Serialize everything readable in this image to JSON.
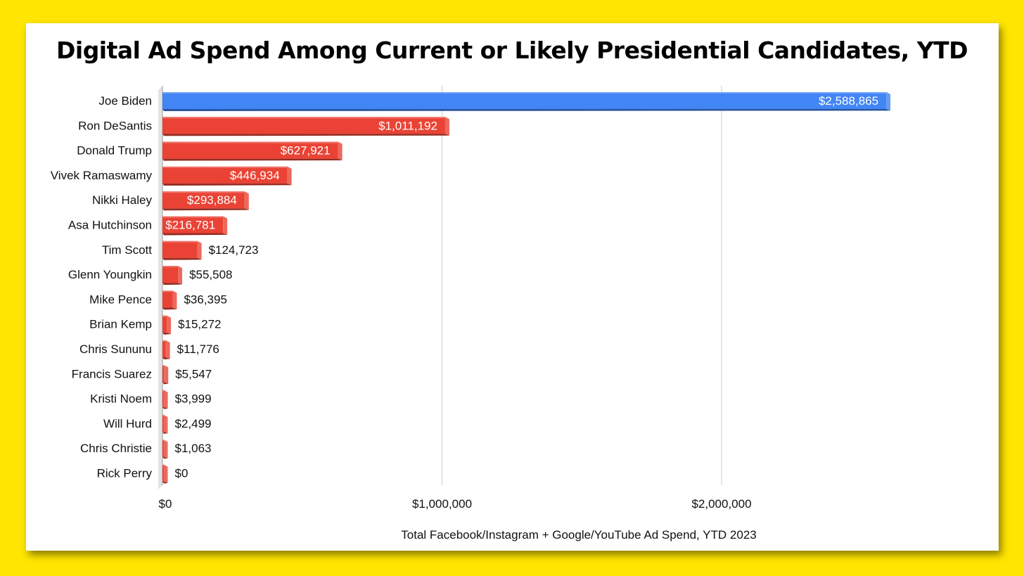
{
  "colors": {
    "background": "#FFE500",
    "card": "#FFFFFF",
    "democrat_bar": "#4285F4",
    "republican_bar": "#EA4335",
    "gridline": "#CCCCCC"
  },
  "chart_data": {
    "type": "bar",
    "orientation": "horizontal",
    "title": "Digital Ad Spend Among Current or Likely Presidential Candidates, YTD",
    "xlabel": "Total Facebook/Instagram + Google/YouTube Ad Spend, YTD 2023",
    "ylabel": "",
    "xlim": [
      0,
      2600000
    ],
    "x_ticks": [
      0,
      1000000,
      2000000
    ],
    "x_tick_labels": [
      "$0",
      "$1,000,000",
      "$2,000,000"
    ],
    "grid": "vertical",
    "legend": "none",
    "categories": [
      "Joe Biden",
      "Ron DeSantis",
      "Donald Trump",
      "Vivek Ramaswamy",
      "Nikki Haley",
      "Asa Hutchinson",
      "Tim Scott",
      "Glenn Youngkin",
      "Mike Pence",
      "Brian Kemp",
      "Chris Sununu",
      "Francis Suarez",
      "Kristi Noem",
      "Will Hurd",
      "Chris Christie",
      "Rick Perry"
    ],
    "values": [
      2588865,
      1011192,
      627921,
      446934,
      293884,
      216781,
      124723,
      55508,
      36395,
      15272,
      11776,
      5547,
      3999,
      2499,
      1063,
      0
    ],
    "value_labels": [
      "$2,588,865",
      "$1,011,192",
      "$627,921",
      "$446,934",
      "$293,884",
      "$216,781",
      "$124,723",
      "$55,508",
      "$36,395",
      "$15,272",
      "$11,776",
      "$5,547",
      "$3,999",
      "$2,499",
      "$1,063",
      "$0"
    ],
    "bar_colors": [
      "#4285F4",
      "#EA4335",
      "#EA4335",
      "#EA4335",
      "#EA4335",
      "#EA4335",
      "#EA4335",
      "#EA4335",
      "#EA4335",
      "#EA4335",
      "#EA4335",
      "#EA4335",
      "#EA4335",
      "#EA4335",
      "#EA4335",
      "#EA4335"
    ],
    "value_label_inside": [
      true,
      true,
      true,
      true,
      true,
      true,
      false,
      false,
      false,
      false,
      false,
      false,
      false,
      false,
      false,
      false
    ]
  }
}
